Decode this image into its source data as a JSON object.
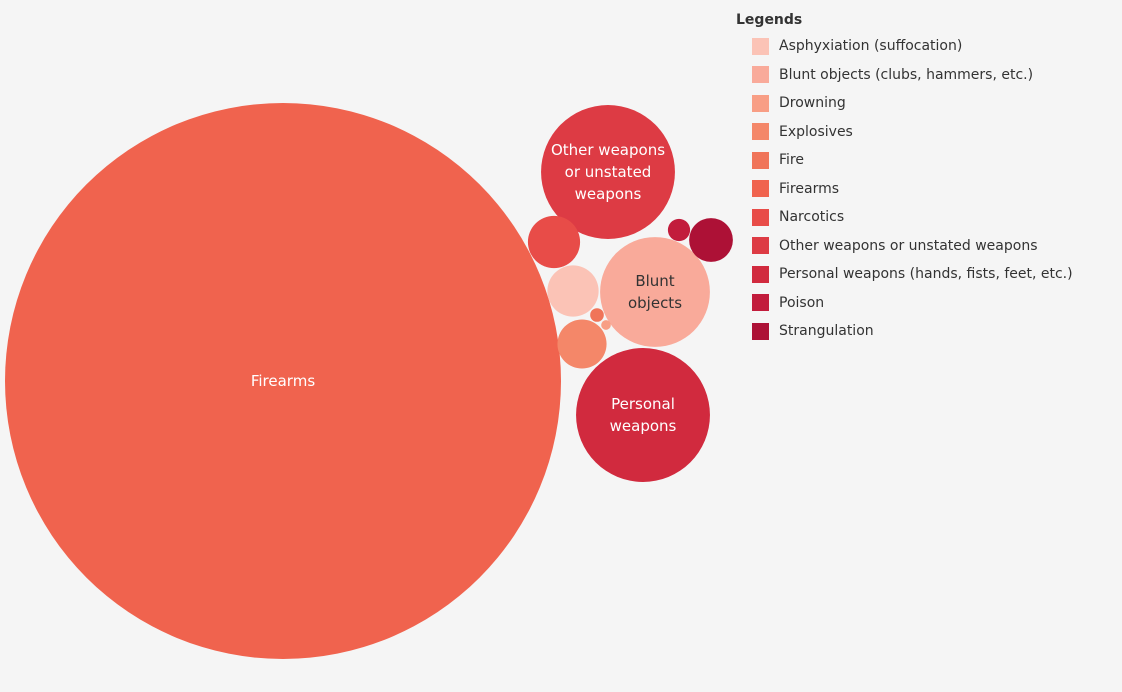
{
  "chart_data": {
    "type": "bubble",
    "legend": {
      "title": "Legends",
      "placement": "top-right"
    },
    "series": [
      {
        "name": "Asphyxiation (suffocation)",
        "color": "#fbc3b6"
      },
      {
        "name": "Blunt objects (clubs, hammers, etc.)",
        "color": "#f9aa9a",
        "label": [
          "Blunt",
          "objects"
        ]
      },
      {
        "name": "Drowning",
        "color": "#f89e85"
      },
      {
        "name": "Explosives",
        "color": "#f48769"
      },
      {
        "name": "Fire",
        "color": "#f07459"
      },
      {
        "name": "Firearms",
        "color": "#f0634e",
        "label": [
          "Firearms"
        ]
      },
      {
        "name": "Narcotics",
        "color": "#e84c48"
      },
      {
        "name": "Other weapons or unstated weapons",
        "color": "#dd3b44",
        "label": [
          "Other weapons",
          "or unstated",
          "weapons"
        ]
      },
      {
        "name": "Personal weapons (hands, fists, feet, etc.)",
        "color": "#d12a3e"
      },
      {
        "name": "Poison",
        "color": "#c21c3c"
      },
      {
        "name": "Strangulation",
        "color": "#ad1136"
      }
    ],
    "bubbles": [
      {
        "category": "Firearms",
        "value": 100000,
        "label": [
          "Firearms"
        ]
      },
      {
        "category": "Other weapons or unstated weapons",
        "value": 5800,
        "label": [
          "Other weapons",
          "or unstated",
          "weapons"
        ]
      },
      {
        "category": "Personal weapons (hands, fists, feet, etc.)",
        "value": 5800,
        "label": [
          "Personal",
          "weapons"
        ]
      },
      {
        "category": "Blunt objects (clubs, hammers, etc.)",
        "value": 3900,
        "label": [
          "Blunt",
          "objects"
        ]
      },
      {
        "category": "Narcotics",
        "value": 880
      },
      {
        "category": "Explosives",
        "value": 780
      },
      {
        "category": "Asphyxiation (suffocation)",
        "value": 850
      },
      {
        "category": "Strangulation",
        "value": 620
      },
      {
        "category": "Poison",
        "value": 160
      },
      {
        "category": "Fire",
        "value": 60
      },
      {
        "category": "Drowning",
        "value": 30
      }
    ]
  }
}
